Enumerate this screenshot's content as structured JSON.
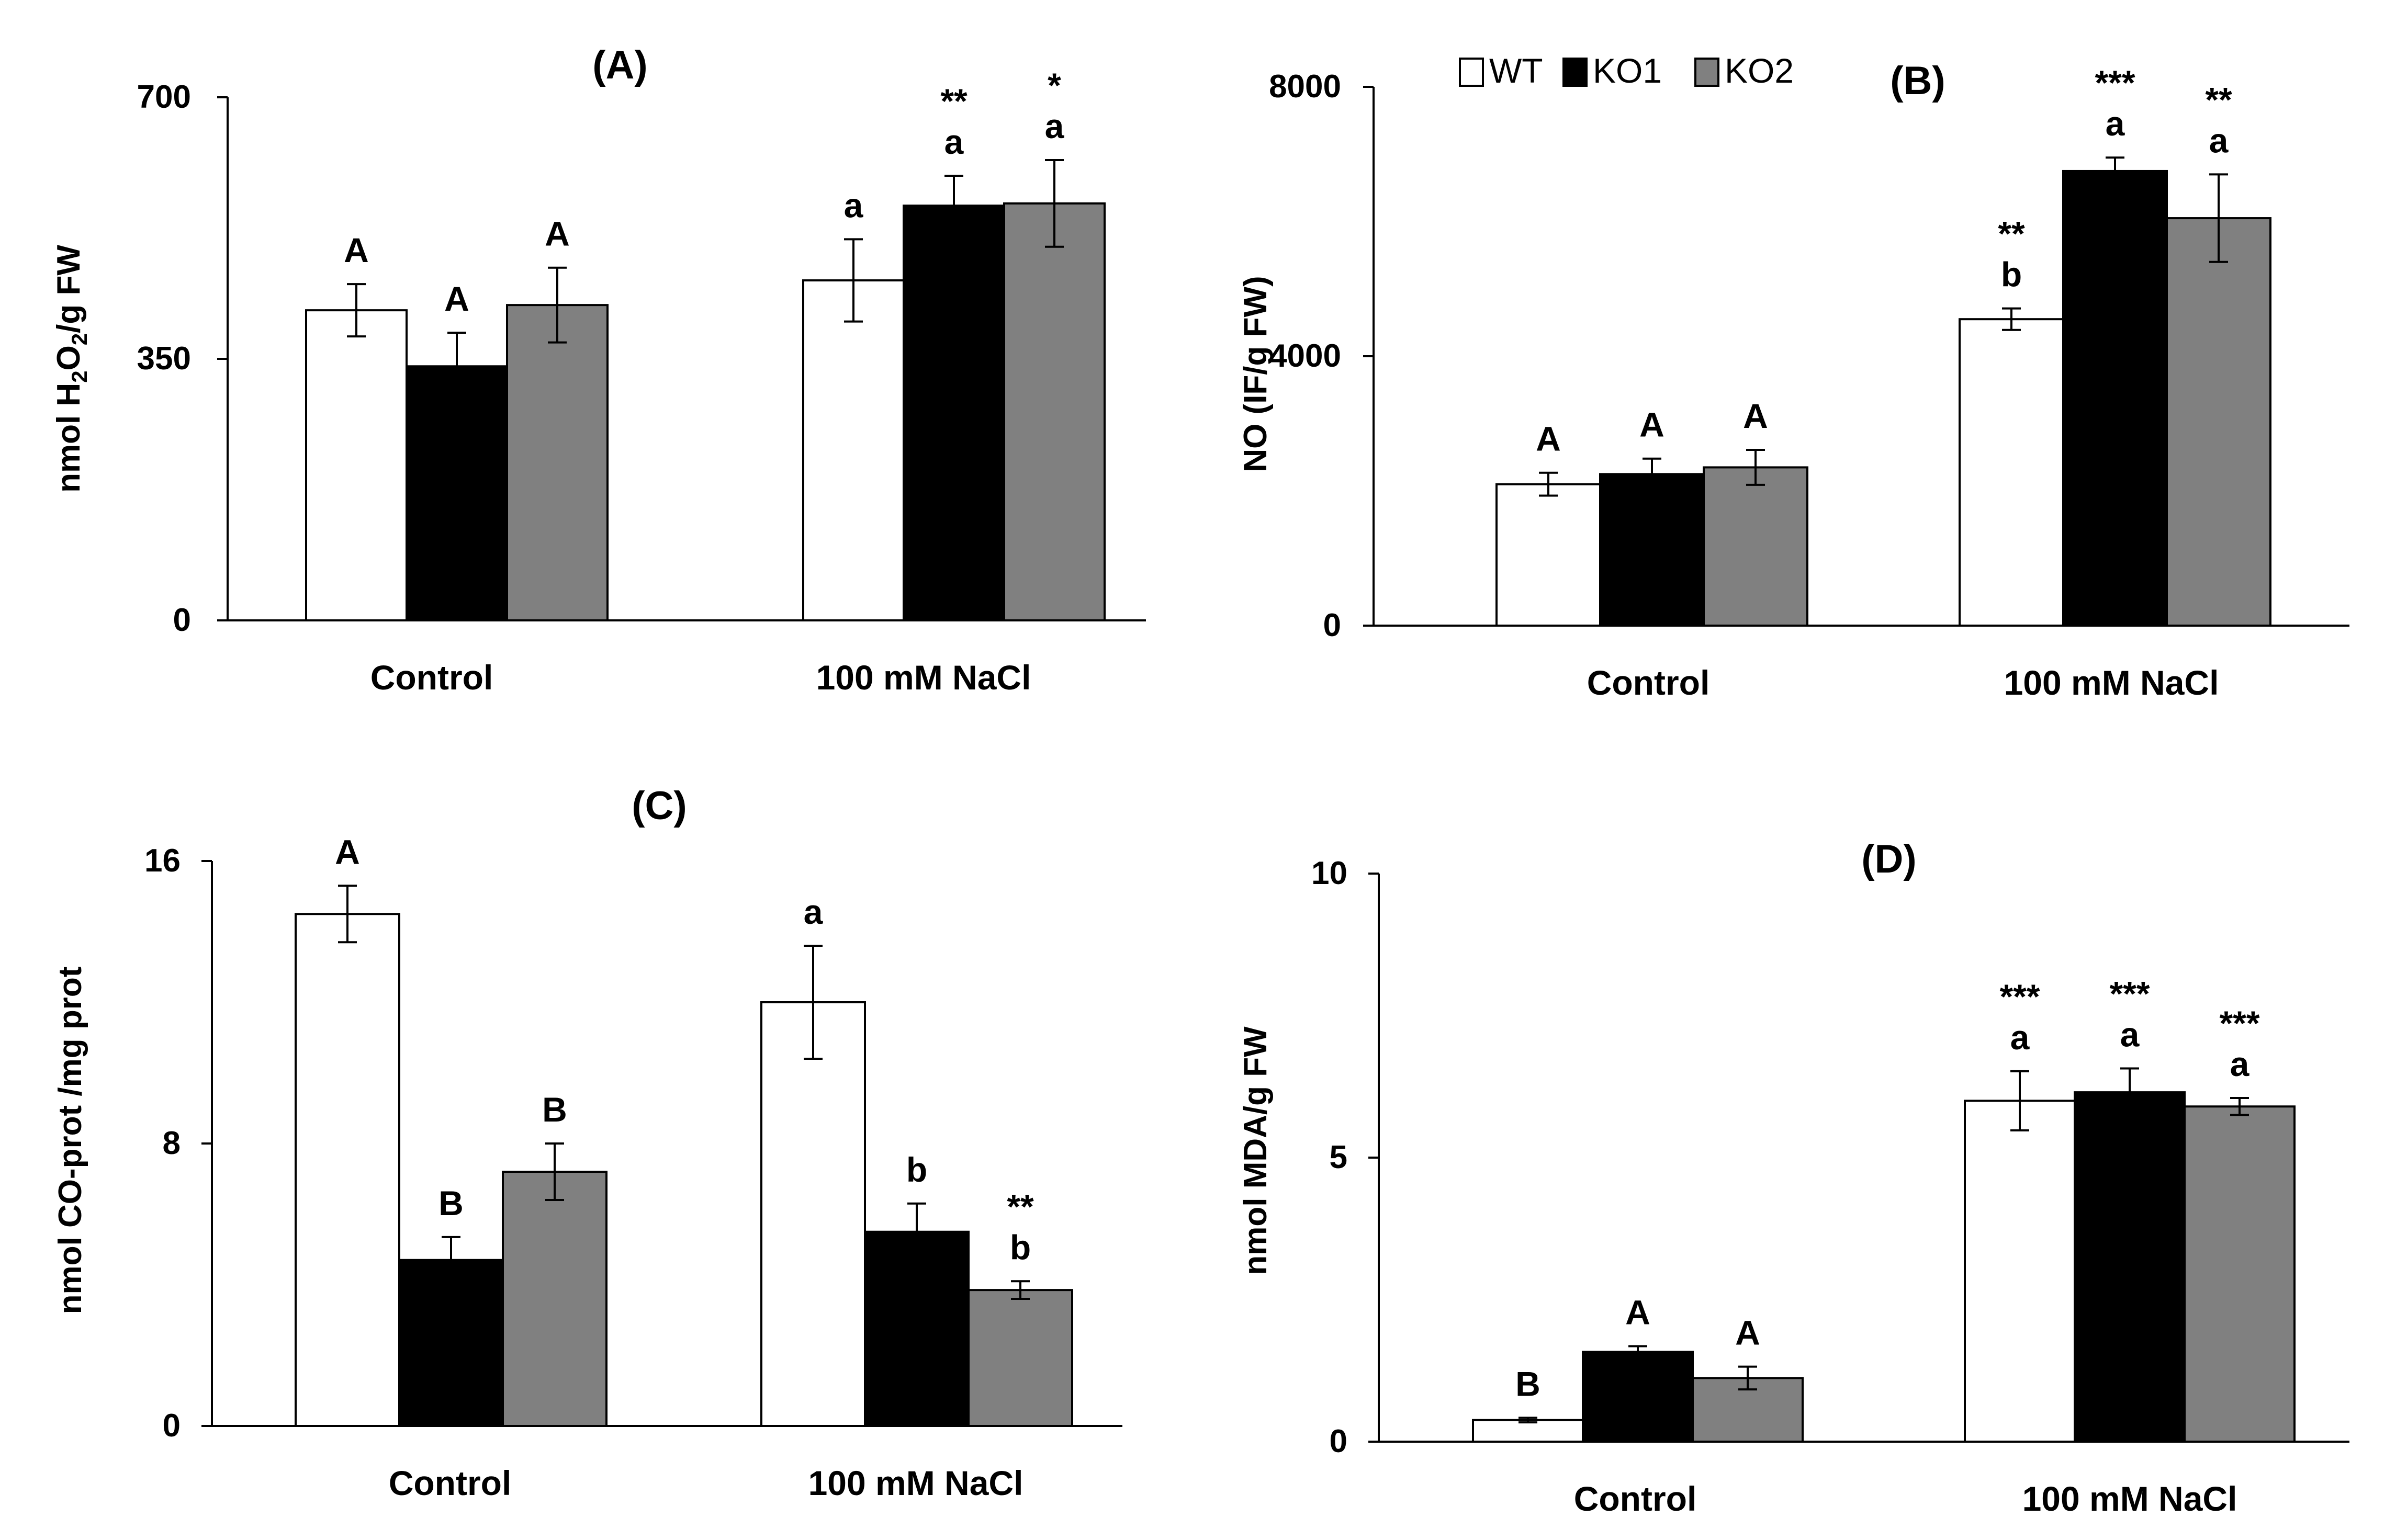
{
  "legend": {
    "items": [
      {
        "label": "WT",
        "color": "#ffffff"
      },
      {
        "label": "KO1",
        "color": "#000000"
      },
      {
        "label": "KO2",
        "color": "#808080"
      }
    ]
  },
  "chart_data": [
    {
      "type": "bar",
      "title": "(A)",
      "ylabel_parts": [
        "nmol H",
        "2",
        "O",
        "2",
        "/g FW"
      ],
      "categories": [
        "Control",
        "100 mM NaCl"
      ],
      "yticks": [
        "0",
        "350",
        "700"
      ],
      "ylim": [
        0,
        700
      ],
      "series": [
        {
          "name": "WT",
          "values": [
            415,
            455
          ],
          "errors": [
            35,
            55
          ]
        },
        {
          "name": "KO1",
          "values": [
            340,
            555
          ],
          "errors": [
            45,
            40
          ]
        },
        {
          "name": "KO2",
          "values": [
            422,
            558
          ],
          "errors": [
            50,
            58
          ]
        }
      ],
      "letters": [
        [
          "A",
          "A",
          "A"
        ],
        [
          "a",
          "a",
          "a"
        ]
      ],
      "stars": [
        [
          "",
          "",
          ""
        ],
        [
          "",
          "**",
          "*"
        ]
      ]
    },
    {
      "type": "bar",
      "title": "(B)",
      "ylabel": "NO (IF/g FW)",
      "categories": [
        "Control",
        "100 mM NaCl"
      ],
      "yticks": [
        "0",
        "4000",
        "8000"
      ],
      "ylim": [
        0,
        8000
      ],
      "series": [
        {
          "name": "WT",
          "values": [
            2100,
            4550
          ],
          "errors": [
            170,
            160
          ]
        },
        {
          "name": "KO1",
          "values": [
            2250,
            6750
          ],
          "errors": [
            230,
            200
          ]
        },
        {
          "name": "KO2",
          "values": [
            2350,
            6050
          ],
          "errors": [
            260,
            650
          ]
        }
      ],
      "letters": [
        [
          "A",
          "A",
          "A"
        ],
        [
          "b",
          "a",
          "a"
        ]
      ],
      "stars": [
        [
          "",
          "",
          ""
        ],
        [
          "**",
          "***",
          "**"
        ]
      ]
    },
    {
      "type": "bar",
      "title": "(C)",
      "ylabel": "nmol CO-prot /mg prot",
      "categories": [
        "Control",
        "100 mM NaCl"
      ],
      "yticks": [
        "0",
        "8",
        "16"
      ],
      "ylim": [
        0,
        16
      ],
      "series": [
        {
          "name": "WT",
          "values": [
            14.5,
            12.0
          ],
          "errors": [
            0.8,
            1.6
          ]
        },
        {
          "name": "KO1",
          "values": [
            4.7,
            5.5
          ],
          "errors": [
            0.65,
            0.8
          ]
        },
        {
          "name": "KO2",
          "values": [
            7.2,
            3.85
          ],
          "errors": [
            0.8,
            0.25
          ]
        }
      ],
      "letters": [
        [
          "A",
          "B",
          "B"
        ],
        [
          "a",
          "b",
          "b"
        ]
      ],
      "stars": [
        [
          "",
          "",
          ""
        ],
        [
          "",
          "",
          "**"
        ]
      ]
    },
    {
      "type": "bar",
      "title": "(D)",
      "ylabel": "nmol MDA/g FW",
      "categories": [
        "Control",
        "100 mM NaCl"
      ],
      "yticks": [
        "0",
        "5",
        "10"
      ],
      "ylim": [
        0,
        10
      ],
      "series": [
        {
          "name": "WT",
          "values": [
            0.38,
            6.0
          ],
          "errors": [
            0.04,
            0.52
          ]
        },
        {
          "name": "KO1",
          "values": [
            1.58,
            6.15
          ],
          "errors": [
            0.1,
            0.42
          ]
        },
        {
          "name": "KO2",
          "values": [
            1.12,
            5.9
          ],
          "errors": [
            0.2,
            0.15
          ]
        }
      ],
      "letters": [
        [
          "B",
          "A",
          "A"
        ],
        [
          "a",
          "a",
          "a"
        ]
      ],
      "stars": [
        [
          "",
          "",
          ""
        ],
        [
          "***",
          "***",
          "***"
        ]
      ]
    }
  ]
}
